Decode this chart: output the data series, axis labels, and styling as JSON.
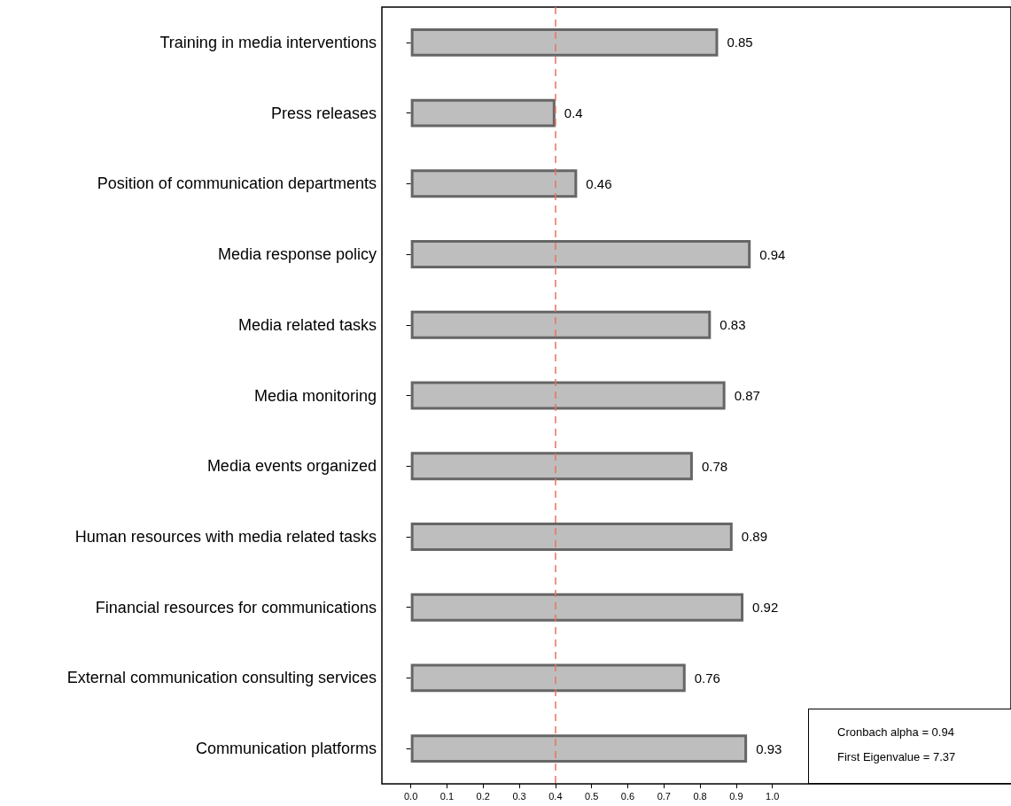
{
  "chart_data": {
    "type": "bar",
    "orientation": "horizontal",
    "categories": [
      "Training in media interventions",
      "Press releases",
      "Position of communication departments",
      "Media response policy",
      "Media related tasks",
      "Media monitoring",
      "Media events organized",
      "Human resources with media related tasks",
      "Financial resources for communications",
      "External communication consulting services",
      "Communication platforms"
    ],
    "values": [
      0.85,
      0.4,
      0.46,
      0.94,
      0.83,
      0.87,
      0.78,
      0.89,
      0.92,
      0.76,
      0.93
    ],
    "color": "#bebebe",
    "data_labels": true,
    "xlim": [
      -0.08,
      1.66
    ],
    "xticks": [
      {
        "value": 0,
        "label": "0.0"
      },
      0.1,
      0.2,
      0.3,
      0.4,
      0.5,
      0.6,
      0.7,
      0.8,
      0.9,
      {
        "value": 1,
        "label": "1.0"
      }
    ],
    "ref_lines": [
      {
        "axis": "x",
        "value": 0.4,
        "color": "#e8735f",
        "line_style": "dashed"
      }
    ],
    "annotations": [
      "Cronbach alpha = 0.94",
      "First Eigenvalue = 7.37"
    ],
    "grid": false
  }
}
